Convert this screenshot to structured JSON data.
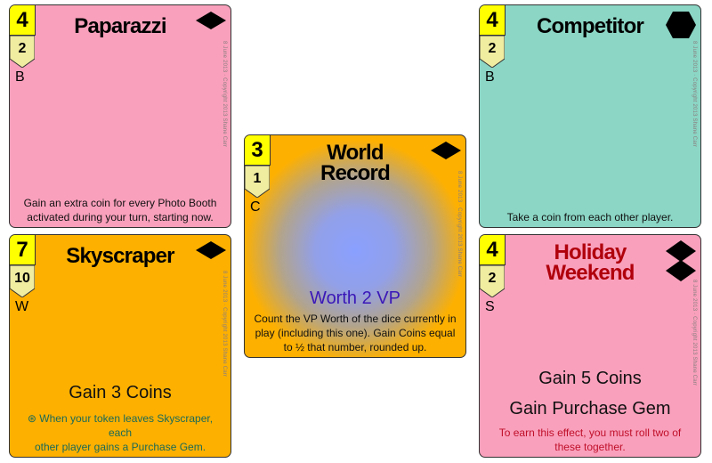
{
  "copyright": "8 June 2013 · Copyright 2013 Shane Carr",
  "colors": {
    "pink": "#f9a0bc",
    "orange": "#fdb000",
    "teal": "#8bd6c5",
    "cost": "#ffff00",
    "badge": "#f0eca0",
    "vp_blue": "#3a18b8",
    "title_red": "#b0000c"
  },
  "cards": [
    {
      "title": "Paparazzi",
      "cost": "4",
      "badge": "2",
      "letter": "B",
      "icon": "diamond-icon",
      "rule": [
        "Gain an extra coin for every Photo Booth",
        "activated during your turn, starting now."
      ]
    },
    {
      "title": "Skyscraper",
      "cost": "7",
      "badge": "10",
      "letter": "W",
      "icon": "diamond-icon",
      "effect": "Gain 3 Coins",
      "note": [
        "⊛ When your token leaves Skyscraper, each",
        "other player gains a Purchase Gem."
      ]
    },
    {
      "title_lines": [
        "World",
        "Record"
      ],
      "cost": "3",
      "badge": "1",
      "letter": "C",
      "icon": "diamond-icon",
      "vp": "Worth 2 VP",
      "rule": [
        "Count the VP Worth of the dice currently in",
        "play (including this one). Gain Coins equal",
        "to ½ that number, rounded up."
      ]
    },
    {
      "title": "Competitor",
      "cost": "4",
      "badge": "2",
      "letter": "B",
      "icon": "hexagon-icon",
      "rule": [
        "Take a coin from each other player."
      ]
    },
    {
      "title_lines": [
        "Holiday",
        "Weekend"
      ],
      "cost": "4",
      "badge": "2",
      "letter": "S",
      "icon": "double-diamond-icon",
      "effects": [
        "Gain 5 Coins",
        "Gain Purchase Gem"
      ],
      "note": [
        "To earn this effect, you must roll two of",
        "these together."
      ]
    }
  ]
}
